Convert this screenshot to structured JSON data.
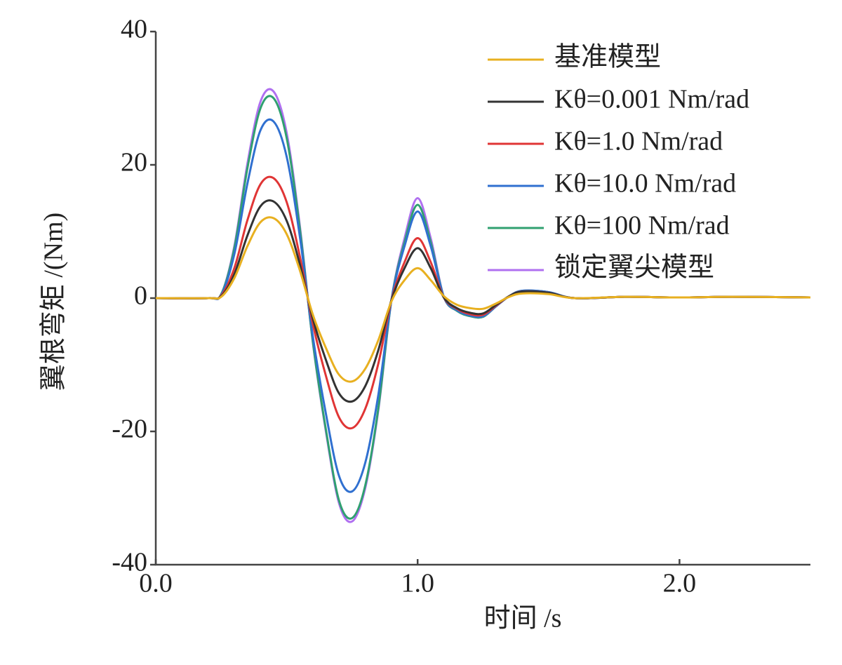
{
  "chart_data": {
    "type": "line",
    "xlabel": "时间 /s",
    "ylabel": "翼根弯矩 /(Nm)",
    "x": [
      0,
      0.2,
      0.25,
      0.3,
      0.35,
      0.4,
      0.45,
      0.5,
      0.55,
      0.6,
      0.65,
      0.7,
      0.75,
      0.8,
      0.85,
      0.9,
      0.95,
      1.0,
      1.05,
      1.1,
      1.15,
      1.2,
      1.25,
      1.3,
      1.35,
      1.4,
      1.5,
      1.6,
      1.8,
      2.0,
      2.2,
      2.5
    ],
    "series": [
      {
        "name": "基准模型",
        "color": "#e8b020",
        "values": [
          0,
          0,
          0.2,
          3,
          7.8,
          11.4,
          12,
          9.6,
          4.2,
          -2.5,
          -7.5,
          -11.5,
          -12.5,
          -10.6,
          -6.3,
          -0.5,
          2.7,
          4.5,
          2.7,
          0.3,
          -1,
          -1.5,
          -1.6,
          -0.8,
          0.2,
          0.7,
          0.6,
          0,
          0.2,
          0.1,
          0.2,
          0.1
        ]
      },
      {
        "name": "Kθ=0.001 Nm/rad",
        "color": "#333333",
        "values": [
          0,
          0,
          0.3,
          3.6,
          9.4,
          13.8,
          14.5,
          11.6,
          5.1,
          -3.1,
          -9.3,
          -14.3,
          -15.5,
          -13.2,
          -7.8,
          -0.3,
          4.5,
          7.5,
          4.5,
          0.1,
          -1.5,
          -2.2,
          -2.3,
          -1,
          0.3,
          1,
          0.8,
          0,
          0.2,
          0.1,
          0.2,
          0.1
        ]
      },
      {
        "name": "Kθ=1.0 Nm/rad",
        "color": "#e03535",
        "values": [
          0,
          0,
          0.4,
          4.5,
          11.7,
          17.1,
          18,
          14.4,
          6.3,
          -3.9,
          -11.7,
          -17.9,
          -19.5,
          -16.6,
          -9.8,
          -0.3,
          5.4,
          9,
          5.4,
          0.1,
          -1.6,
          -2.4,
          -2.5,
          -1.1,
          0.3,
          1,
          0.8,
          0,
          0.2,
          0.1,
          0.2,
          0.1
        ]
      },
      {
        "name": "Kθ=10.0 Nm/rad",
        "color": "#3070d0",
        "values": [
          0,
          0,
          0.5,
          6.6,
          17.2,
          25.2,
          26.5,
          21.2,
          9.3,
          -5.8,
          -17.4,
          -26.7,
          -29,
          -24.7,
          -14.5,
          -0.3,
          7.8,
          13,
          7.8,
          0.2,
          -1.8,
          -2.6,
          -2.7,
          -1.2,
          0.3,
          1.1,
          0.9,
          0,
          0.2,
          0.1,
          0.2,
          0.1
        ]
      },
      {
        "name": "Kθ=100 Nm/rad",
        "color": "#30a070",
        "values": [
          0,
          0,
          0.6,
          7.5,
          19.5,
          28.5,
          30,
          24,
          10.5,
          -6.6,
          -19.8,
          -30.4,
          -33,
          -28.1,
          -16.5,
          -0.3,
          8.4,
          14,
          8.4,
          0.2,
          -1.9,
          -2.7,
          -2.8,
          -1.2,
          0.3,
          1.1,
          0.9,
          0,
          0.2,
          0.1,
          0.2,
          0.1
        ]
      },
      {
        "name": "锁定翼尖模型",
        "color": "#b070f0",
        "values": [
          0,
          0,
          0.6,
          7.8,
          20.2,
          29.5,
          31,
          24.8,
          10.9,
          -6.7,
          -20.1,
          -30.8,
          -33.5,
          -28.5,
          -16.8,
          -0.3,
          9,
          15,
          9,
          0.2,
          -1.9,
          -2.7,
          -2.8,
          -1.2,
          0.3,
          1.1,
          0.9,
          0,
          0.2,
          0.1,
          0.2,
          0.1
        ]
      }
    ],
    "xlim": [
      0,
      2.5
    ],
    "xticks": [
      {
        "value": 0,
        "label": "0.0"
      },
      {
        "value": 1,
        "label": "1.0"
      },
      {
        "value": 2,
        "label": "2.0"
      }
    ],
    "ylim": [
      -40,
      40
    ],
    "yticks": [
      40,
      20,
      0,
      -20,
      -40
    ],
    "grid": false,
    "legend": "upper right"
  }
}
